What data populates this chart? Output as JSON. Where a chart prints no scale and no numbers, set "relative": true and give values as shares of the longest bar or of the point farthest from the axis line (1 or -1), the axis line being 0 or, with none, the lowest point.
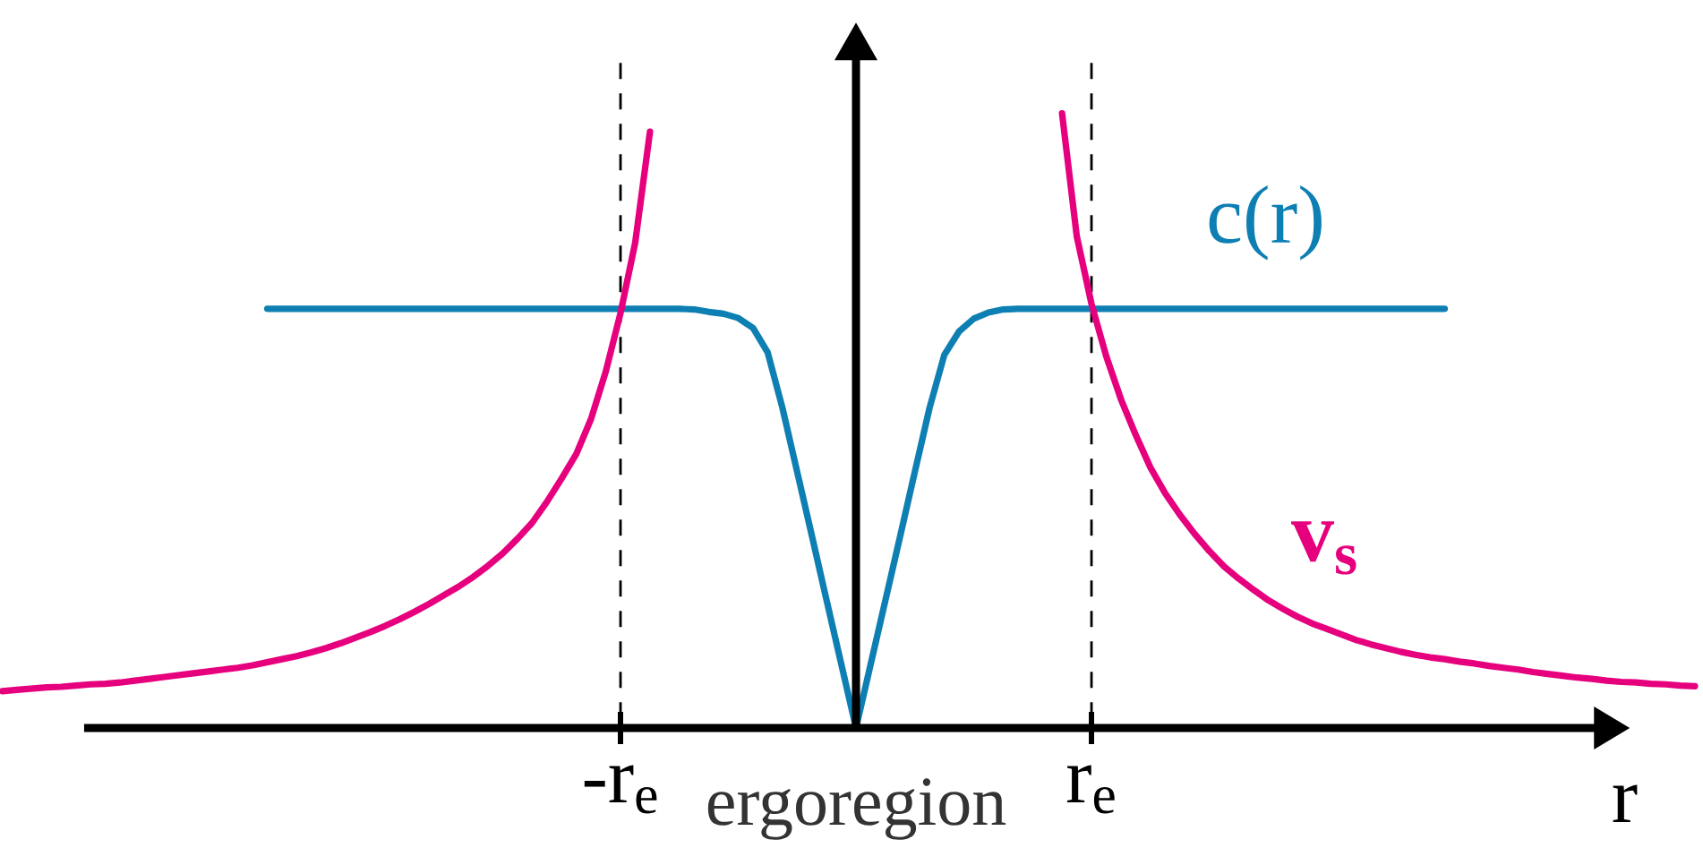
{
  "chart_data": {
    "type": "line",
    "relative": true,
    "categories": [
      null,
      null,
      null,
      null,
      null,
      null,
      null,
      null,
      null,
      null,
      null,
      null,
      null,
      null,
      null,
      null,
      null,
      null,
      null,
      null,
      null,
      null,
      null,
      null,
      null,
      null,
      null,
      null,
      null,
      null,
      null,
      null,
      null,
      null,
      null,
      null,
      null,
      null,
      null,
      null,
      null,
      null,
      "-r$_{e}$",
      null,
      null,
      null,
      null,
      null,
      null,
      null,
      null,
      null,
      null,
      null,
      null,
      null,
      null,
      null,
      null,
      null,
      null,
      null,
      null,
      null,
      null,
      null,
      null,
      null,
      null,
      null,
      null,
      null,
      null,
      null,
      "r$_{e}$",
      null,
      null,
      null,
      null,
      null,
      null,
      null,
      null,
      null,
      null,
      null,
      null,
      null,
      null,
      null,
      null,
      null,
      null,
      null,
      null,
      null,
      null,
      null,
      null,
      null,
      null,
      null,
      null,
      null,
      null,
      null,
      null,
      null,
      null,
      null,
      null,
      null,
      null,
      null,
      null,
      null
    ],
    "xlabel": "r",
    "series": [
      {
        "name": "c(r)",
        "color": "#0e7fb3",
        "values": [
          null,
          null,
          null,
          null,
          null,
          null,
          null,
          null,
          null,
          null,
          null,
          null,
          null,
          null,
          null,
          null,
          null,
          null,
          0.682,
          0.682,
          0.682,
          0.682,
          0.682,
          0.682,
          0.682,
          0.682,
          0.682,
          0.682,
          0.682,
          0.682,
          0.682,
          0.682,
          0.682,
          0.682,
          0.682,
          0.682,
          0.682,
          0.682,
          0.682,
          0.682,
          0.682,
          0.682,
          0.682,
          0.682,
          0.682,
          0.682,
          0.682,
          0.681,
          0.677,
          0.674,
          0.667,
          0.651,
          0.611,
          0.521,
          0.417,
          0.313,
          0.208,
          0.104,
          0,
          0.104,
          0.208,
          0.312,
          0.417,
          0.521,
          0.607,
          0.645,
          0.666,
          0.676,
          0.681,
          0.682,
          0.682,
          0.682,
          0.682,
          0.682,
          0.682,
          0.682,
          0.682,
          0.682,
          0.682,
          0.682,
          0.682,
          0.682,
          0.682,
          0.682,
          0.682,
          0.682,
          0.682,
          0.682,
          0.682,
          0.682,
          0.682,
          0.682,
          0.682,
          0.682,
          0.682,
          0.682,
          0.682,
          0.682,
          0.682,
          null,
          null,
          null,
          null,
          null,
          null,
          null,
          null,
          null,
          null,
          null,
          null,
          null,
          null,
          null,
          null,
          null
        ]
      },
      {
        "name": "v$_{s}$",
        "color": "#e6007e",
        "values": [
          0.06,
          0.062,
          0.064,
          0.066,
          0.067,
          0.069,
          0.071,
          0.072,
          0.074,
          0.077,
          0.08,
          0.083,
          0.086,
          0.089,
          0.092,
          0.095,
          0.098,
          0.102,
          0.107,
          0.112,
          0.117,
          0.123,
          0.13,
          0.138,
          0.147,
          0.156,
          0.166,
          0.177,
          0.189,
          0.202,
          0.216,
          0.23,
          0.246,
          0.264,
          0.284,
          0.308,
          0.334,
          0.368,
          0.406,
          0.446,
          0.503,
          0.58,
          0.675,
          0.79,
          0.97,
          null,
          null,
          null,
          null,
          null,
          null,
          null,
          null,
          null,
          null,
          null,
          null,
          null,
          null,
          null,
          null,
          null,
          null,
          null,
          null,
          null,
          null,
          null,
          null,
          null,
          null,
          null,
          1.0,
          0.8,
          0.69,
          0.605,
          0.535,
          0.477,
          0.424,
          0.382,
          0.347,
          0.316,
          0.288,
          0.263,
          0.243,
          0.225,
          0.208,
          0.194,
          0.181,
          0.17,
          0.161,
          0.152,
          0.143,
          0.136,
          0.13,
          0.124,
          0.119,
          0.115,
          0.112,
          0.108,
          0.105,
          0.101,
          0.098,
          0.095,
          0.091,
          0.088,
          0.085,
          0.082,
          0.08,
          0.077,
          0.075,
          0.074,
          0.072,
          0.071,
          0.069,
          0.068
        ]
      }
    ],
    "ref_lines": [
      {
        "axis": "x",
        "value": "-r$_{e}$",
        "color": "#000000",
        "line_style": "dashed"
      },
      {
        "axis": "x",
        "value": "r$_{e}$",
        "color": "#000000",
        "line_style": "dashed"
      }
    ],
    "annotations": [
      "ergoregion"
    ]
  }
}
